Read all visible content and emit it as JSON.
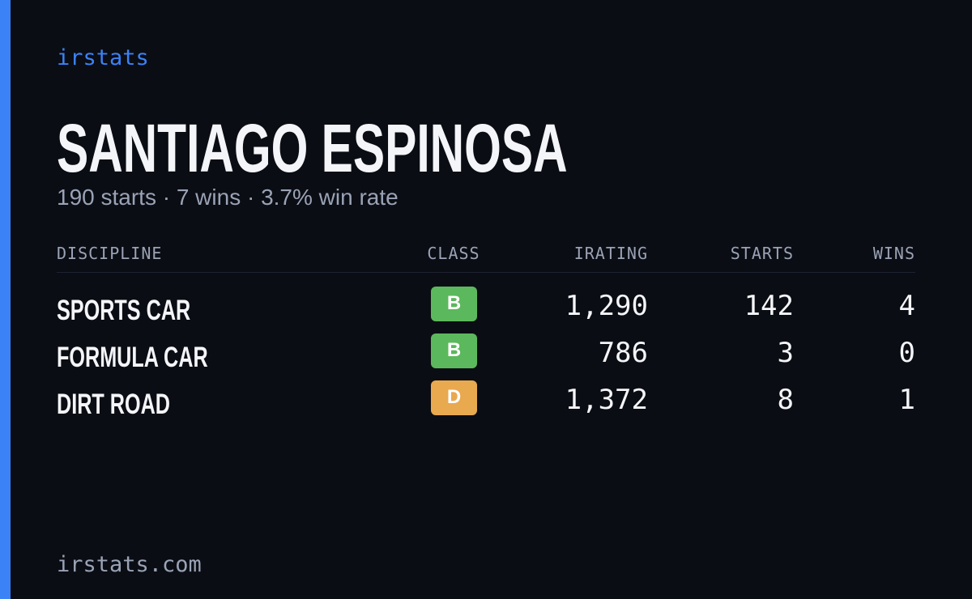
{
  "brand": "irstats",
  "profile": {
    "name": "SANTIAGO ESPINOSA",
    "summary": "190 starts · 7 wins · 3.7% win rate"
  },
  "table": {
    "headers": [
      "DISCIPLINE",
      "CLASS",
      "IRATING",
      "STARTS",
      "WINS"
    ],
    "rows": [
      [
        "SPORTS CAR",
        "B",
        "1,290",
        "142",
        "4"
      ],
      [
        "FORMULA CAR",
        "B",
        "786",
        "3",
        "0"
      ],
      [
        "DIRT ROAD",
        "D",
        "1,372",
        "8",
        "1"
      ]
    ]
  },
  "footer": "irstats.com"
}
